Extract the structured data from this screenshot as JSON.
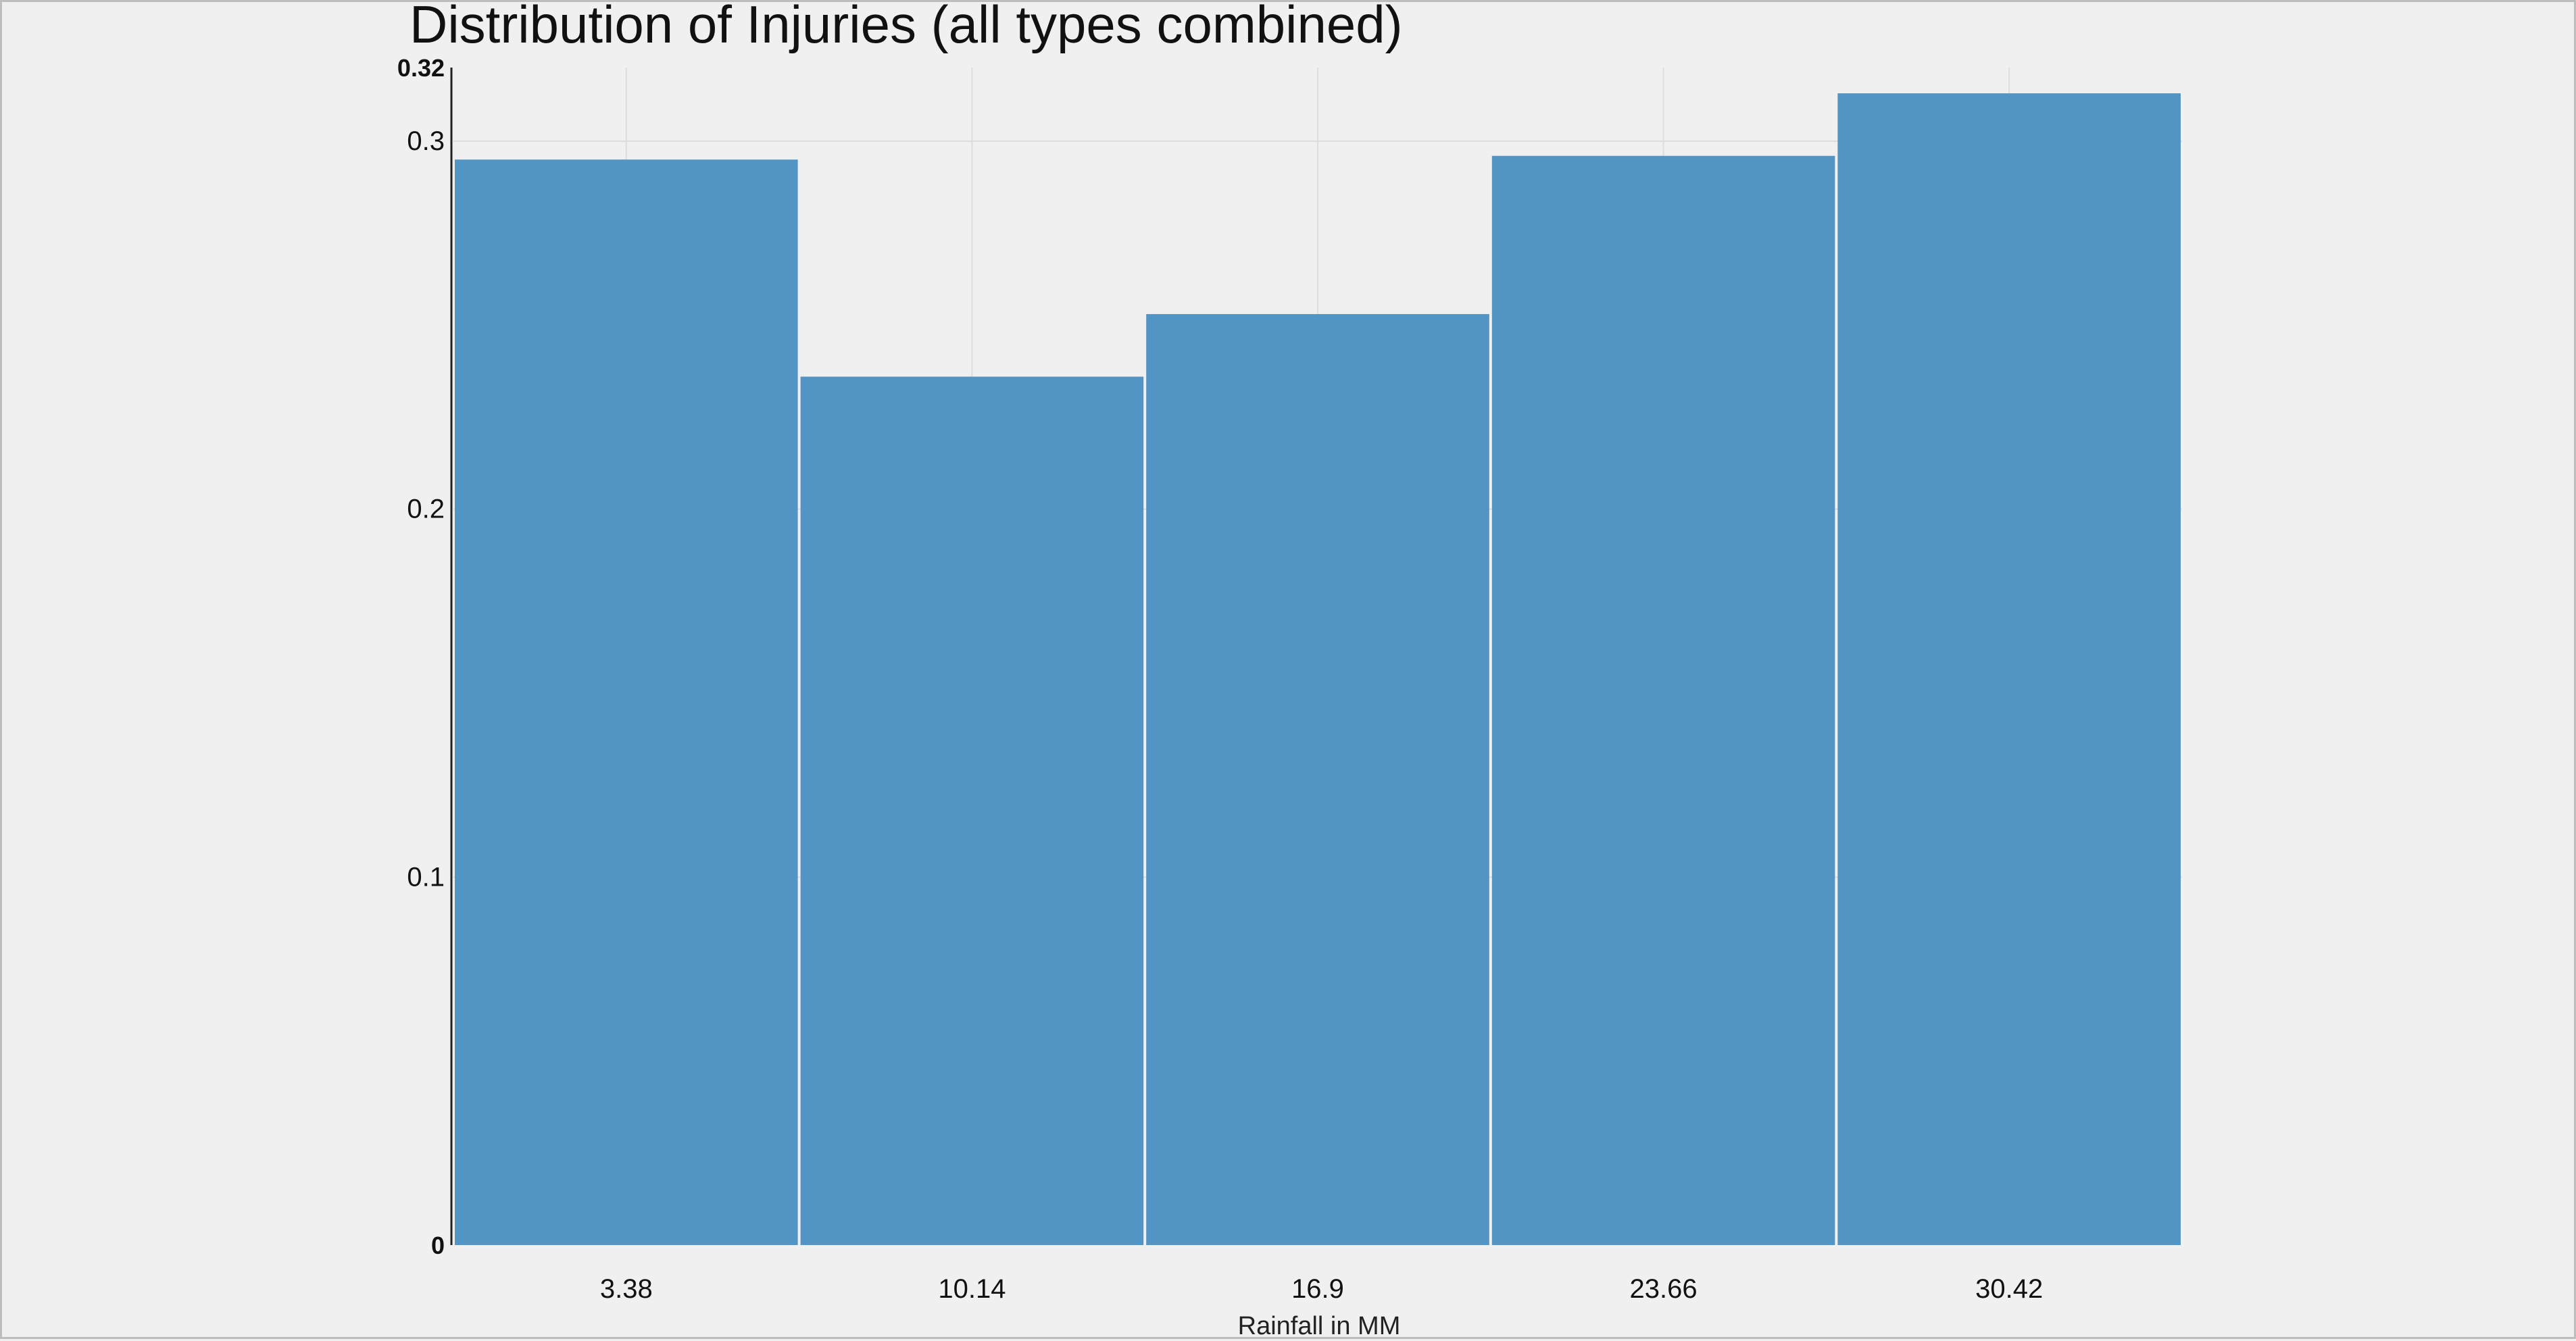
{
  "chart_data": {
    "type": "bar",
    "title": "Distribution of Injuries (all types combined)",
    "xlabel": "Rainfall in MM",
    "ylabel": "",
    "categories": [
      "3.38",
      "10.14",
      "16.9",
      "23.66",
      "30.42"
    ],
    "values": [
      0.295,
      0.236,
      0.253,
      0.296,
      0.313
    ],
    "ylim": [
      0,
      0.32
    ],
    "yticks": [
      {
        "value": 0,
        "label": "0",
        "bold": true
      },
      {
        "value": 0.1,
        "label": "0.1",
        "bold": false
      },
      {
        "value": 0.2,
        "label": "0.2",
        "bold": false
      },
      {
        "value": 0.3,
        "label": "0.3",
        "bold": false
      },
      {
        "value": 0.32,
        "label": "0.32",
        "bold": true
      }
    ],
    "grid": true,
    "bar_color": "#5294c3",
    "legend": "none"
  }
}
